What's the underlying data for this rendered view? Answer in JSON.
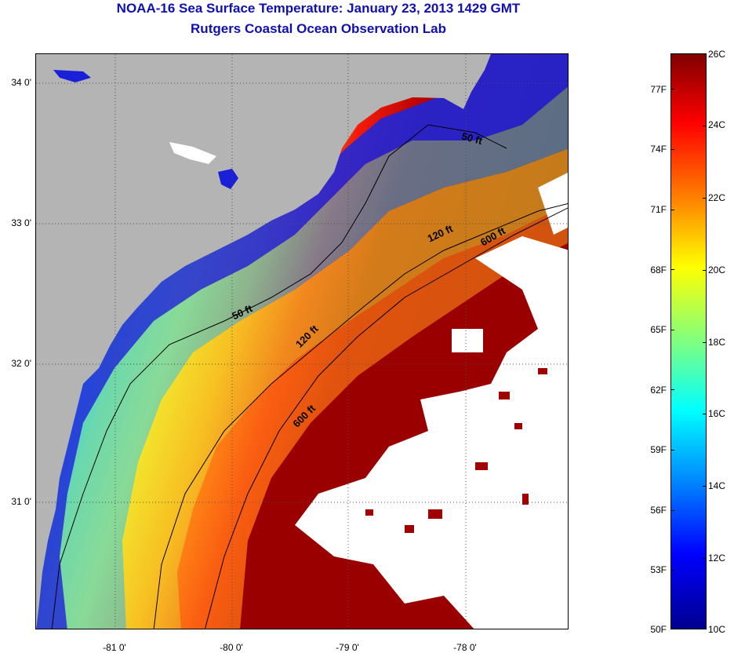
{
  "title": {
    "line1": "NOAA-16 Sea Surface Temperature:  January 23, 2013 1429 GMT",
    "line2": "Rutgers Coastal Ocean Observation Lab"
  },
  "map": {
    "lat_labels": [
      "34 0'",
      "33 0'",
      "32 0'",
      "31 0'"
    ],
    "lon_labels": [
      "-81 0'",
      "-80 0'",
      "-79 0'",
      "-78 0'"
    ],
    "contour_labels": [
      "50 ft",
      "50 ft",
      "120 ft",
      "120 ft",
      "600 ft",
      "600 ft"
    ],
    "colors": {
      "land": "#b4b4b4",
      "cloud": "#ffffff",
      "contour": "#000000",
      "grid": "#606060"
    }
  },
  "colorbar": {
    "celsius_labels": [
      "26C",
      "24C",
      "22C",
      "20C",
      "18C",
      "16C",
      "14C",
      "12C",
      "10C"
    ],
    "fahrenheit_labels": [
      "77F",
      "74F",
      "71F",
      "68F",
      "65F",
      "62F",
      "59F",
      "56F",
      "53F",
      "50F"
    ],
    "colors": [
      "#00008f",
      "#0000ff",
      "#0080ff",
      "#00ffff",
      "#80ff80",
      "#ffff00",
      "#ff8000",
      "#ff0000",
      "#800000"
    ]
  }
}
